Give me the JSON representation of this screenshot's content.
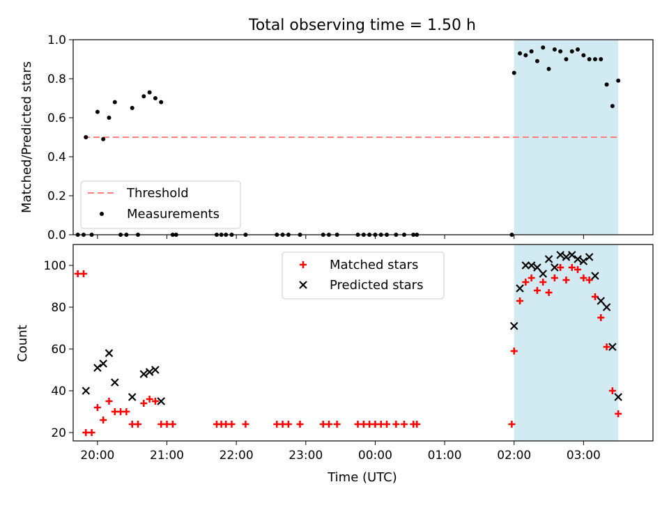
{
  "chart_data": [
    {
      "type": "scatter",
      "title": "Total observing time = 1.50 h",
      "xlabel": "",
      "ylabel": "Matched/Predicted stars",
      "xlim": [
        "19:39",
        "04:00"
      ],
      "ylim": [
        0.0,
        1.0
      ],
      "yticks": [
        "0.0",
        "0.2",
        "0.4",
        "0.6",
        "0.8",
        "1.0"
      ],
      "highlight_span": [
        "02:00",
        "03:30"
      ],
      "highlight_color": "#add8e6",
      "threshold": {
        "name": "Threshold",
        "value": 0.5,
        "color": "#ff7f7f",
        "style": "dashed"
      },
      "legend": {
        "placement": "lower-left",
        "entries": [
          "Threshold",
          "Measurements"
        ]
      },
      "series": [
        {
          "name": "Measurements",
          "color": "#000000",
          "marker": "dot",
          "points": [
            [
              "19:43",
              0.0
            ],
            [
              "19:48",
              0.0
            ],
            [
              "19:55",
              0.0
            ],
            [
              "19:50",
              0.5
            ],
            [
              "20:00",
              0.63
            ],
            [
              "20:05",
              0.49
            ],
            [
              "20:10",
              0.6
            ],
            [
              "20:15",
              0.68
            ],
            [
              "20:20",
              0.0
            ],
            [
              "20:25",
              0.0
            ],
            [
              "20:30",
              0.65
            ],
            [
              "20:35",
              0.0
            ],
            [
              "20:40",
              0.71
            ],
            [
              "20:45",
              0.73
            ],
            [
              "20:50",
              0.7
            ],
            [
              "20:55",
              0.68
            ],
            [
              "21:05",
              0.0
            ],
            [
              "21:08",
              0.0
            ],
            [
              "21:43",
              0.0
            ],
            [
              "21:47",
              0.0
            ],
            [
              "21:51",
              0.0
            ],
            [
              "21:56",
              0.0
            ],
            [
              "22:08",
              0.0
            ],
            [
              "22:35",
              0.0
            ],
            [
              "22:40",
              0.0
            ],
            [
              "22:45",
              0.0
            ],
            [
              "22:55",
              0.0
            ],
            [
              "23:15",
              0.0
            ],
            [
              "23:20",
              0.0
            ],
            [
              "23:27",
              0.0
            ],
            [
              "23:45",
              0.0
            ],
            [
              "23:50",
              0.0
            ],
            [
              "23:55",
              0.0
            ],
            [
              "00:00",
              0.0
            ],
            [
              "00:05",
              0.0
            ],
            [
              "00:10",
              0.0
            ],
            [
              "00:18",
              0.0
            ],
            [
              "00:25",
              0.0
            ],
            [
              "00:33",
              0.0
            ],
            [
              "00:36",
              0.0
            ],
            [
              "01:58",
              0.0
            ],
            [
              "02:00",
              0.83
            ],
            [
              "02:05",
              0.93
            ],
            [
              "02:10",
              0.92
            ],
            [
              "02:15",
              0.94
            ],
            [
              "02:20",
              0.89
            ],
            [
              "02:25",
              0.96
            ],
            [
              "02:30",
              0.85
            ],
            [
              "02:35",
              0.95
            ],
            [
              "02:40",
              0.94
            ],
            [
              "02:45",
              0.9
            ],
            [
              "02:50",
              0.94
            ],
            [
              "02:55",
              0.95
            ],
            [
              "03:00",
              0.92
            ],
            [
              "03:05",
              0.9
            ],
            [
              "03:10",
              0.9
            ],
            [
              "03:15",
              0.9
            ],
            [
              "03:20",
              0.77
            ],
            [
              "03:25",
              0.66
            ],
            [
              "03:30",
              0.79
            ]
          ]
        }
      ]
    },
    {
      "type": "scatter",
      "title": "",
      "xlabel": "Time (UTC)",
      "ylabel": "Count",
      "xlim": [
        "19:39",
        "04:00"
      ],
      "ylim": [
        16,
        110
      ],
      "yticks": [
        "20",
        "40",
        "60",
        "80",
        "100"
      ],
      "xticks": [
        "20:00",
        "21:00",
        "22:00",
        "23:00",
        "00:00",
        "01:00",
        "02:00",
        "03:00"
      ],
      "highlight_span": [
        "02:00",
        "03:30"
      ],
      "highlight_color": "#add8e6",
      "legend": {
        "placement": "top-center",
        "entries": [
          "Matched stars",
          "Predicted stars"
        ]
      },
      "series": [
        {
          "name": "Matched stars",
          "color": "#ff0000",
          "marker": "plus",
          "points": [
            [
              "19:43",
              96
            ],
            [
              "19:48",
              96
            ],
            [
              "19:50",
              20
            ],
            [
              "19:55",
              20
            ],
            [
              "20:00",
              32
            ],
            [
              "20:05",
              26
            ],
            [
              "20:10",
              35
            ],
            [
              "20:15",
              30
            ],
            [
              "20:20",
              30
            ],
            [
              "20:25",
              30
            ],
            [
              "20:30",
              24
            ],
            [
              "20:35",
              24
            ],
            [
              "20:40",
              34
            ],
            [
              "20:45",
              36
            ],
            [
              "20:50",
              35
            ],
            [
              "20:55",
              24
            ],
            [
              "21:00",
              24
            ],
            [
              "21:05",
              24
            ],
            [
              "21:43",
              24
            ],
            [
              "21:47",
              24
            ],
            [
              "21:51",
              24
            ],
            [
              "21:56",
              24
            ],
            [
              "22:08",
              24
            ],
            [
              "22:35",
              24
            ],
            [
              "22:40",
              24
            ],
            [
              "22:45",
              24
            ],
            [
              "22:55",
              24
            ],
            [
              "23:15",
              24
            ],
            [
              "23:20",
              24
            ],
            [
              "23:27",
              24
            ],
            [
              "23:45",
              24
            ],
            [
              "23:50",
              24
            ],
            [
              "23:55",
              24
            ],
            [
              "00:00",
              24
            ],
            [
              "00:05",
              24
            ],
            [
              "00:10",
              24
            ],
            [
              "00:18",
              24
            ],
            [
              "00:25",
              24
            ],
            [
              "00:33",
              24
            ],
            [
              "00:36",
              24
            ],
            [
              "01:58",
              24
            ],
            [
              "02:00",
              59
            ],
            [
              "02:05",
              83
            ],
            [
              "02:10",
              92
            ],
            [
              "02:15",
              94
            ],
            [
              "02:20",
              88
            ],
            [
              "02:25",
              92
            ],
            [
              "02:30",
              87
            ],
            [
              "02:35",
              94
            ],
            [
              "02:40",
              99
            ],
            [
              "02:45",
              93
            ],
            [
              "02:50",
              99
            ],
            [
              "02:55",
              98
            ],
            [
              "03:00",
              94
            ],
            [
              "03:05",
              93
            ],
            [
              "03:10",
              85
            ],
            [
              "03:15",
              75
            ],
            [
              "03:20",
              61
            ],
            [
              "03:25",
              40
            ],
            [
              "03:30",
              29
            ]
          ]
        },
        {
          "name": "Predicted stars",
          "color": "#000000",
          "marker": "x",
          "points": [
            [
              "19:50",
              40
            ],
            [
              "20:00",
              51
            ],
            [
              "20:05",
              53
            ],
            [
              "20:10",
              58
            ],
            [
              "20:15",
              44
            ],
            [
              "20:30",
              37
            ],
            [
              "20:40",
              48
            ],
            [
              "20:45",
              49
            ],
            [
              "20:50",
              50
            ],
            [
              "20:55",
              35
            ],
            [
              "02:00",
              71
            ],
            [
              "02:05",
              89
            ],
            [
              "02:10",
              100
            ],
            [
              "02:15",
              100
            ],
            [
              "02:20",
              99
            ],
            [
              "02:25",
              96
            ],
            [
              "02:30",
              103
            ],
            [
              "02:35",
              99
            ],
            [
              "02:40",
              105
            ],
            [
              "02:45",
              104
            ],
            [
              "02:50",
              105
            ],
            [
              "02:55",
              103
            ],
            [
              "03:00",
              102
            ],
            [
              "03:05",
              104
            ],
            [
              "03:10",
              95
            ],
            [
              "03:15",
              83
            ],
            [
              "03:20",
              80
            ],
            [
              "03:25",
              61
            ],
            [
              "03:30",
              37
            ]
          ]
        }
      ]
    }
  ]
}
